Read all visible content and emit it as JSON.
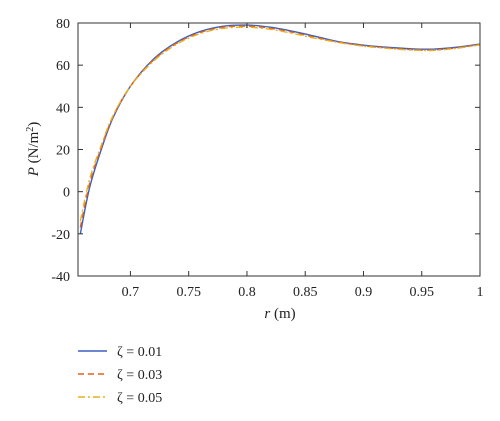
{
  "chart_data": {
    "type": "line",
    "xlabel_var": "r",
    "xlabel_unit": "(m)",
    "ylabel_var": "P",
    "ylabel_unit_pre": "(N/m",
    "ylabel_unit_sup": "2",
    "ylabel_unit_post": ")",
    "xlim": [
      0.655,
      1.0
    ],
    "ylim": [
      -40,
      80
    ],
    "xticks": [
      0.7,
      0.75,
      0.8,
      0.85,
      0.9,
      0.95,
      1.0
    ],
    "xtick_labels": [
      "0.7",
      "0.75",
      "0.8",
      "0.85",
      "0.9",
      "0.95",
      "1"
    ],
    "yticks": [
      -40,
      -20,
      0,
      20,
      40,
      60,
      80
    ],
    "ytick_labels": [
      "-40",
      "-20",
      "0",
      "20",
      "40",
      "60",
      "80"
    ],
    "grid": false,
    "legend_position": "below",
    "series": [
      {
        "name": "ζ = 0.01",
        "color": "#3b5fc0",
        "dash": "solid",
        "x": [
          0.657,
          0.665,
          0.675,
          0.685,
          0.7,
          0.72,
          0.74,
          0.76,
          0.78,
          0.8,
          0.82,
          0.84,
          0.86,
          0.88,
          0.9,
          0.92,
          0.94,
          0.96,
          0.98,
          1.0
        ],
        "y": [
          -20,
          2,
          20,
          35,
          50,
          63,
          71,
          76,
          78.5,
          79,
          78,
          76,
          73.5,
          71,
          69.5,
          68.5,
          67.8,
          67.6,
          68.5,
          70
        ]
      },
      {
        "name": "ζ = 0.03",
        "color": "#e0601c",
        "dash": "dashed",
        "x": [
          0.657,
          0.665,
          0.675,
          0.685,
          0.7,
          0.72,
          0.74,
          0.76,
          0.78,
          0.8,
          0.82,
          0.84,
          0.86,
          0.88,
          0.9,
          0.92,
          0.94,
          0.96,
          0.98,
          1.0
        ],
        "y": [
          -17,
          4,
          21,
          35.5,
          50,
          62.5,
          70.5,
          75.5,
          78,
          78.5,
          77.5,
          75.5,
          73,
          70.8,
          69.2,
          68.2,
          67.4,
          67.2,
          68.2,
          69.8
        ]
      },
      {
        "name": "ζ = 0.05",
        "color": "#e8b021",
        "dash": "dashdot",
        "x": [
          0.657,
          0.665,
          0.675,
          0.685,
          0.7,
          0.72,
          0.74,
          0.76,
          0.78,
          0.8,
          0.82,
          0.84,
          0.86,
          0.88,
          0.9,
          0.92,
          0.94,
          0.96,
          0.98,
          1.0
        ],
        "y": [
          -14,
          6,
          22,
          36,
          50,
          62,
          70,
          75,
          77.5,
          78,
          77,
          75,
          72.6,
          70.6,
          69,
          68,
          67.2,
          67,
          68,
          69.6
        ]
      }
    ]
  }
}
